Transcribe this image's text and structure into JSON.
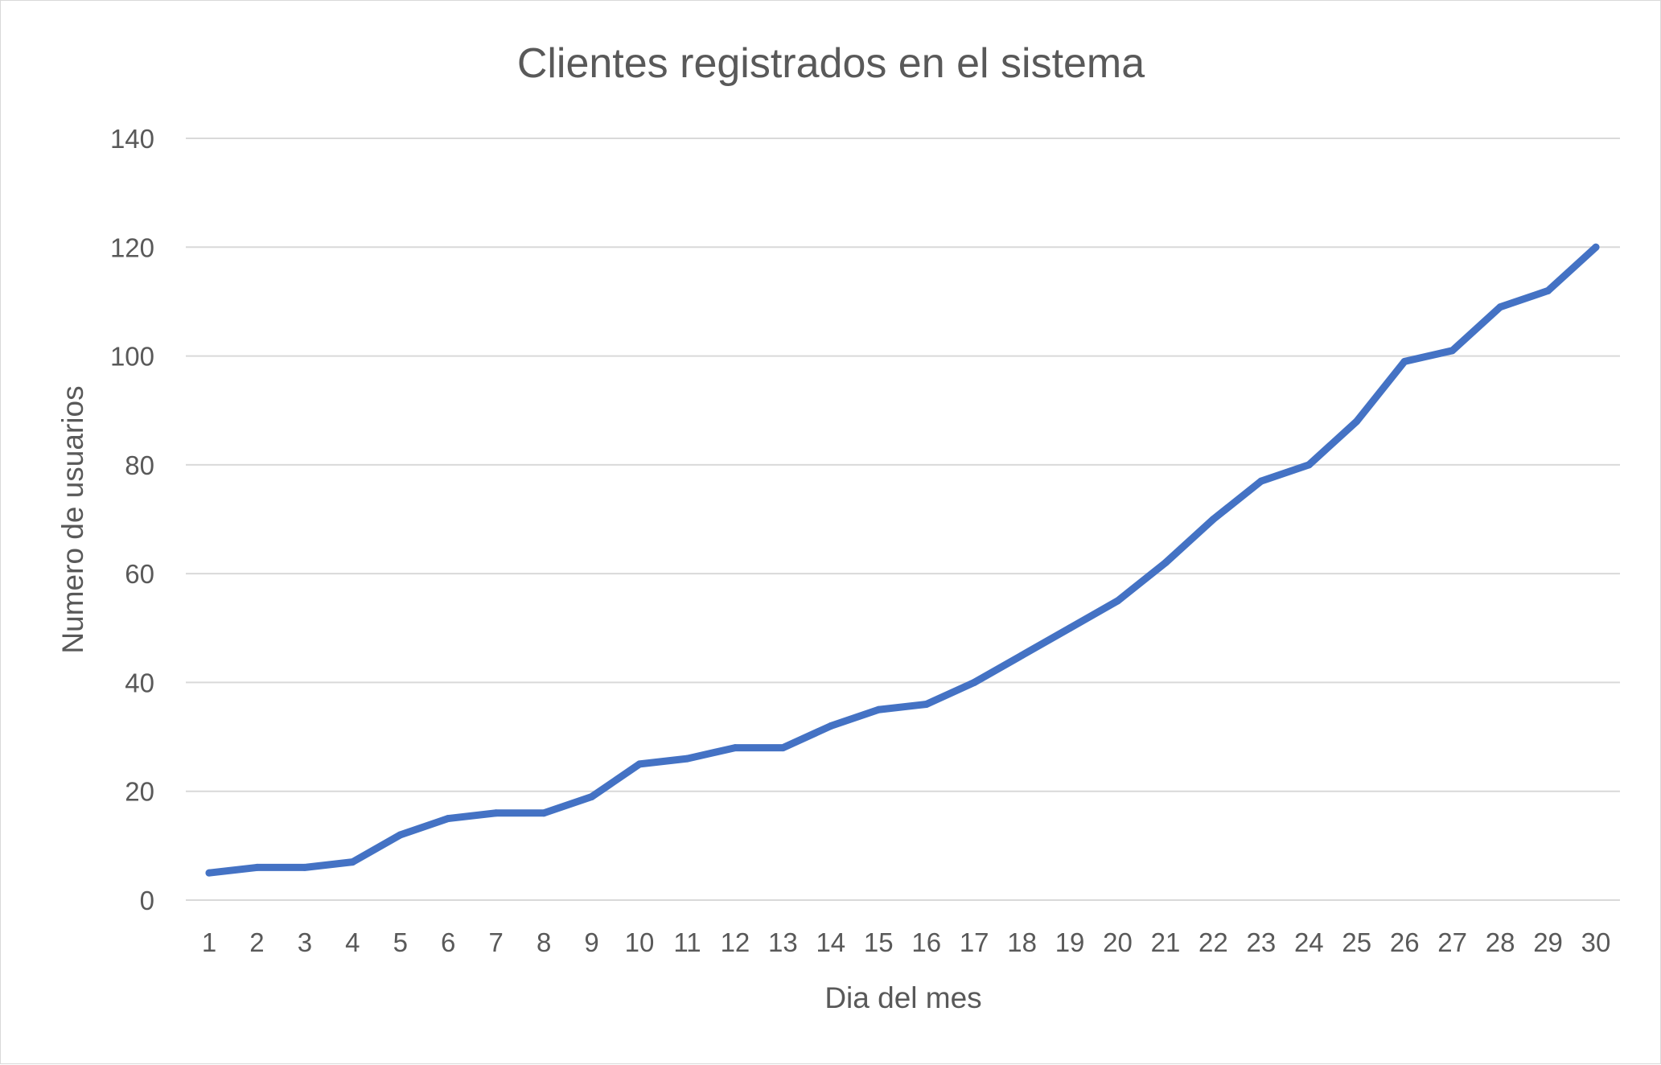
{
  "chart_data": {
    "type": "line",
    "title": "Clientes registrados en el sistema",
    "xlabel": "Dia del mes",
    "ylabel": "Numero de usuarios",
    "x": [
      1,
      2,
      3,
      4,
      5,
      6,
      7,
      8,
      9,
      10,
      11,
      12,
      13,
      14,
      15,
      16,
      17,
      18,
      19,
      20,
      21,
      22,
      23,
      24,
      25,
      26,
      27,
      28,
      29,
      30
    ],
    "x_tick_labels": [
      "1",
      "2",
      "3",
      "4",
      "5",
      "6",
      "7",
      "8",
      "9",
      "10",
      "11",
      "12",
      "13",
      "14",
      "15",
      "16",
      "17",
      "18",
      "19",
      "20",
      "21",
      "22",
      "23",
      "24",
      "25",
      "26",
      "27",
      "28",
      "29",
      "30"
    ],
    "y_ticks": [
      0,
      20,
      40,
      60,
      80,
      100,
      120,
      140
    ],
    "y_tick_labels": [
      "0",
      "20",
      "40",
      "60",
      "80",
      "100",
      "120",
      "140"
    ],
    "ylim": [
      0,
      140
    ],
    "grid": "horizontal",
    "legend": "none",
    "series": [
      {
        "values": [
          5,
          6,
          6,
          7,
          12,
          15,
          16,
          16,
          19,
          25,
          26,
          28,
          28,
          32,
          35,
          36,
          40,
          45,
          50,
          55,
          62,
          70,
          77,
          80,
          88,
          99,
          101,
          109,
          112,
          120
        ],
        "color": "#4472c4"
      }
    ]
  }
}
